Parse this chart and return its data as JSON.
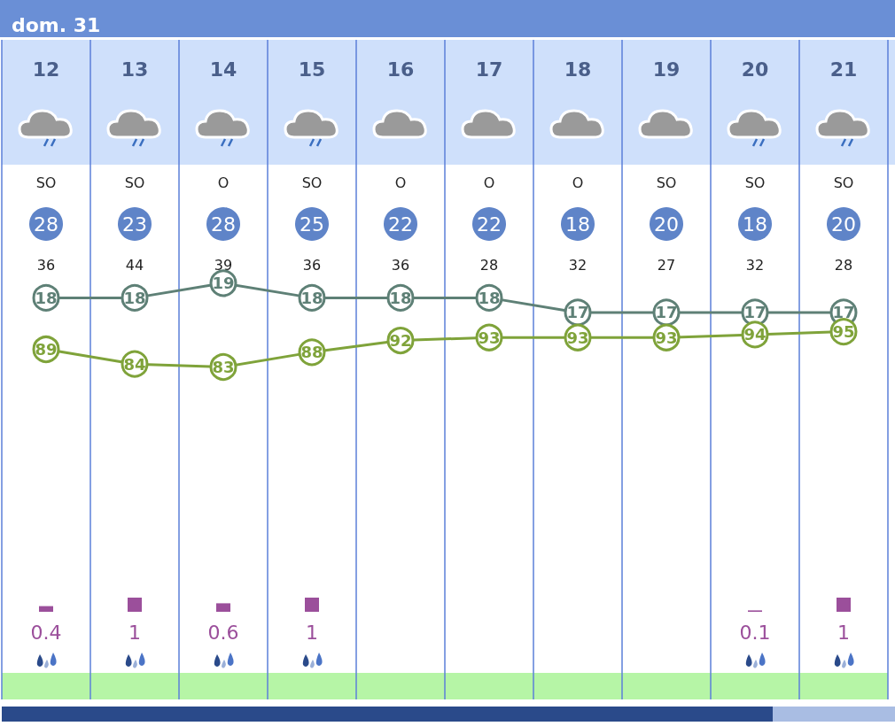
{
  "chart_data": [
    {
      "type": "line",
      "title": "dom. 31",
      "categories": [
        "12",
        "13",
        "14",
        "15",
        "16",
        "17",
        "18",
        "19",
        "20",
        "21"
      ],
      "values": [
        18,
        18,
        19,
        18,
        18,
        18,
        17,
        17,
        17,
        17
      ],
      "color": "#5e8076",
      "annotations": [
        "SO",
        "SO",
        "O",
        "SO",
        "O",
        "O",
        "O",
        "SO",
        "SO",
        "SO",
        "28",
        "23",
        "28",
        "25",
        "22",
        "22",
        "18",
        "20",
        "18",
        "20",
        "36",
        "44",
        "39",
        "36",
        "36",
        "28",
        "32",
        "27",
        "32",
        "28"
      ],
      "data_labels": true,
      "grid": "x",
      "marker": "circle",
      "tick_labels": "x"
    },
    {
      "type": "line",
      "categories": [
        "12",
        "13",
        "14",
        "15",
        "16",
        "17",
        "18",
        "19",
        "20",
        "21"
      ],
      "values": [
        89,
        84,
        83,
        88,
        92,
        93,
        93,
        93,
        94,
        95
      ],
      "color": "#7fa33a",
      "data_labels": true,
      "marker": "circle",
      "tick_labels": false
    },
    {
      "type": "bar",
      "categories": [
        "12",
        "13",
        "14",
        "15",
        "16",
        "17",
        "18",
        "19",
        "20",
        "21"
      ],
      "values": [
        0.4,
        1,
        0.6,
        1,
        null,
        null,
        null,
        null,
        0.1,
        1
      ],
      "color": "#9b4f9b",
      "data_labels": true,
      "tick_labels": false
    }
  ]
}
